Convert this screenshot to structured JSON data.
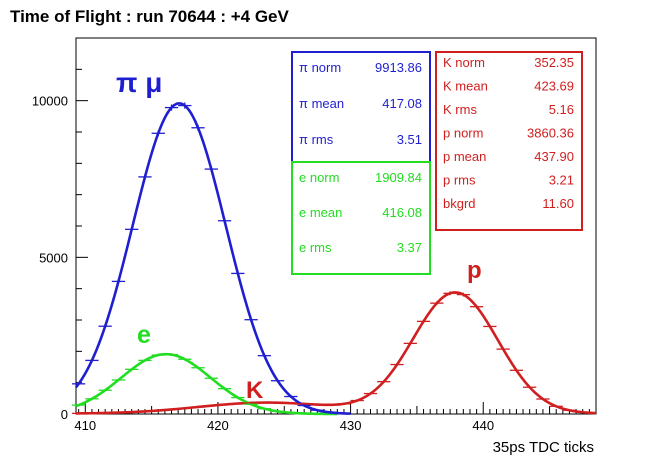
{
  "chart_data": {
    "type": "line",
    "title": "Time of Flight : run 70644 : +4 GeV",
    "xlabel": "35ps TDC ticks",
    "ylabel": "",
    "xlim": [
      409.3,
      448.5
    ],
    "ylim": [
      0,
      12000
    ],
    "x_ticks": [
      410,
      420,
      430,
      440
    ],
    "y_ticks": [
      0,
      5000,
      10000
    ],
    "grid": false,
    "colors": {
      "pimu": "#1f1fd1",
      "e": "#22dd22",
      "kp": "#d11f1f"
    },
    "annotations": [
      {
        "text": "π μ",
        "color": "#1f1fd1"
      },
      {
        "text": "e",
        "color": "#22dd22"
      },
      {
        "text": "K",
        "color": "#d11f1f"
      },
      {
        "text": "p",
        "color": "#d11f1f"
      }
    ],
    "fit_boxes": [
      {
        "color": "#1f1fd1",
        "rows": [
          {
            "label": "π norm",
            "value": "9913.86"
          },
          {
            "label": "π mean",
            "value": "417.08"
          },
          {
            "label": "π rms",
            "value": "3.51"
          }
        ]
      },
      {
        "color": "#22dd22",
        "rows": [
          {
            "label": "e norm",
            "value": "1909.84"
          },
          {
            "label": "e mean",
            "value": "416.08"
          },
          {
            "label": "e rms",
            "value": "3.37"
          }
        ]
      },
      {
        "color": "#d11f1f",
        "rows": [
          {
            "label": "K norm",
            "value": "352.35"
          },
          {
            "label": "K mean",
            "value": "423.69"
          },
          {
            "label": "K rms",
            "value": "5.16"
          },
          {
            "label": "p norm",
            "value": "3860.36"
          },
          {
            "label": "p mean",
            "value": "437.90"
          },
          {
            "label": "p rms",
            "value": "3.21"
          },
          {
            "label": "bkgrd",
            "value": "11.60"
          }
        ]
      }
    ],
    "series": [
      {
        "key": "pimu",
        "fit": {
          "norm": 9913.86,
          "mean": 417.08,
          "rms": 3.51
        },
        "data_x_range": [
          409.5,
          428.5
        ]
      },
      {
        "key": "e",
        "fit": {
          "norm": 1909.84,
          "mean": 416.08,
          "rms": 3.37
        },
        "data_x_range": [
          409.5,
          425.5
        ]
      },
      {
        "key": "kp",
        "fit": {
          "kaon": {
            "norm": 352.35,
            "mean": 423.69,
            "rms": 5.16
          },
          "proton": {
            "norm": 3860.36,
            "mean": 437.9,
            "rms": 3.21
          },
          "background": 11.6
        },
        "data_x_range": [
          409.5,
          447.5
        ]
      }
    ]
  }
}
